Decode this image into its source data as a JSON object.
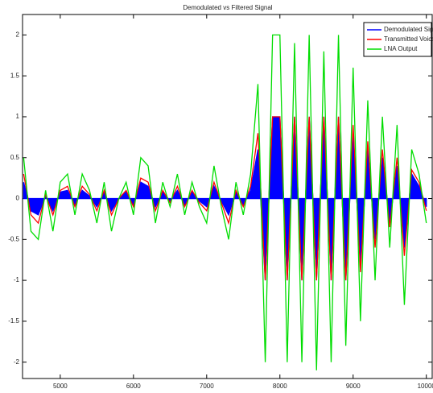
{
  "chart_data": {
    "type": "line",
    "title": "Demodulated vs Filtered Signal",
    "x": [
      4500,
      4600,
      4700,
      4800,
      4900,
      5000,
      5100,
      5200,
      5300,
      5400,
      5500,
      5600,
      5700,
      5800,
      5900,
      6000,
      6100,
      6200,
      6300,
      6400,
      6500,
      6600,
      6700,
      6800,
      6900,
      7000,
      7100,
      7200,
      7300,
      7400,
      7500,
      7600,
      7700,
      7800,
      7900,
      8000,
      8100,
      8200,
      8300,
      8400,
      8500,
      8600,
      8700,
      8800,
      8900,
      9000,
      9100,
      9200,
      9300,
      9400,
      9500,
      9600,
      9700,
      9800,
      9900,
      10000
    ],
    "series": [
      {
        "name": "Demodulated Signal",
        "color": "#0000ff",
        "fill": true,
        "values": [
          0.2,
          -0.15,
          -0.2,
          0.03,
          -0.15,
          0.08,
          0.1,
          -0.08,
          0.1,
          0.03,
          -0.1,
          0.08,
          -0.15,
          0,
          0.08,
          -0.08,
          0.2,
          0.15,
          -0.1,
          0.08,
          -0.03,
          0.1,
          -0.08,
          0.08,
          -0.03,
          -0.1,
          0.15,
          -0.03,
          -0.2,
          0.08,
          -0.08,
          0.1,
          0.6,
          -1,
          1,
          1,
          -1,
          1,
          -1,
          1,
          -1,
          1,
          -1,
          1,
          -1,
          0.8,
          -0.8,
          0.6,
          -0.5,
          0.5,
          -0.3,
          0.4,
          -0.6,
          0.3,
          0.15,
          -0.1
        ]
      },
      {
        "name": "Transmitted Voice",
        "color": "#ff0000",
        "values": [
          0.3,
          -0.2,
          -0.3,
          0.05,
          -0.2,
          0.1,
          0.15,
          -0.1,
          0.15,
          0.05,
          -0.15,
          0.1,
          -0.2,
          0,
          0.1,
          -0.1,
          0.25,
          0.2,
          -0.15,
          0.1,
          -0.05,
          0.15,
          -0.1,
          0.1,
          -0.05,
          -0.15,
          0.2,
          -0.05,
          -0.3,
          0.1,
          -0.1,
          0.15,
          0.8,
          -1,
          1,
          1,
          -1,
          1,
          -1,
          1,
          -1,
          1,
          -1,
          1,
          -1,
          0.9,
          -0.9,
          0.7,
          -0.6,
          0.6,
          -0.35,
          0.5,
          -0.7,
          0.35,
          0.2,
          -0.15
        ]
      },
      {
        "name": "LNA Output",
        "color": "#00dd00",
        "values": [
          0.5,
          -0.4,
          -0.5,
          0.1,
          -0.4,
          0.2,
          0.3,
          -0.2,
          0.3,
          0.1,
          -0.3,
          0.2,
          -0.4,
          0.0,
          0.2,
          -0.2,
          0.5,
          0.4,
          -0.3,
          0.2,
          -0.1,
          0.3,
          -0.2,
          0.2,
          -0.1,
          -0.3,
          0.4,
          -0.1,
          -0.5,
          0.2,
          -0.2,
          0.3,
          1.4,
          -2.0,
          2.0,
          2.0,
          -2.0,
          1.9,
          -2.0,
          2.0,
          -2.1,
          1.8,
          -2.0,
          2.0,
          -1.8,
          1.6,
          -1.5,
          1.2,
          -1.0,
          1.0,
          -0.6,
          0.9,
          -1.3,
          0.6,
          0.3,
          -0.3
        ]
      }
    ],
    "xlim": [
      4485,
      10080
    ],
    "ylim": [
      -2.2,
      2.25
    ],
    "xticks": [
      5000,
      6000,
      7000,
      8000,
      9000,
      10000
    ],
    "yticks": [
      -2,
      -1.5,
      -1,
      -0.5,
      0,
      0.5,
      1,
      1.5,
      2
    ],
    "legend": "upper right"
  }
}
